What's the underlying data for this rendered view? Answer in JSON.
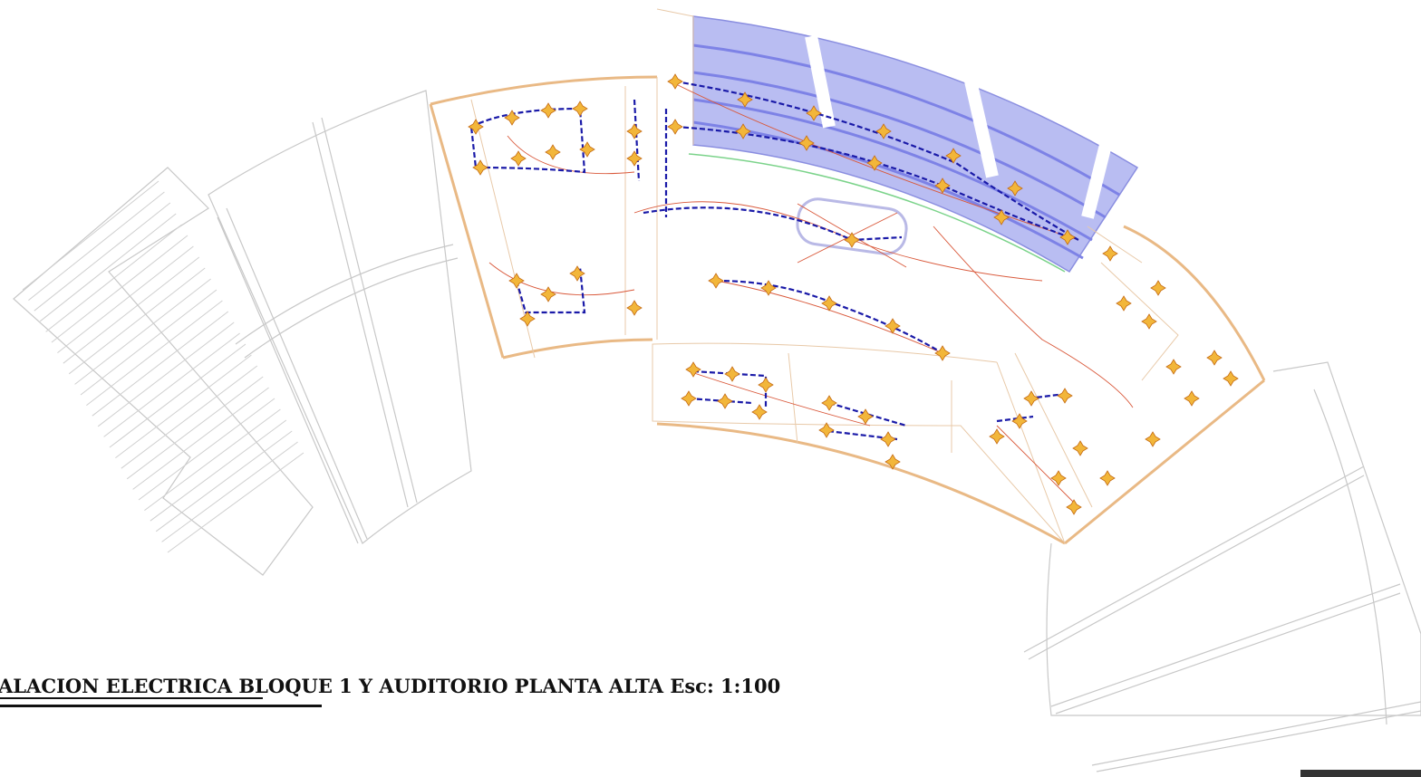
{
  "title": "ALACION ELECTRICA BLOQUE 1 Y AUDITORIO PLANTA ALTA Esc: 1:100"
}
